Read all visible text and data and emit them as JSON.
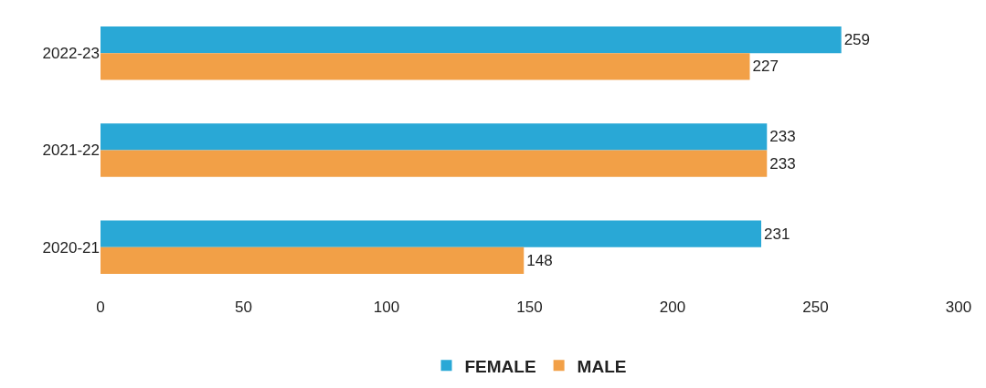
{
  "chart_data": {
    "type": "bar",
    "orientation": "horizontal",
    "categories": [
      "2022-23",
      "2021-22",
      "2020-21"
    ],
    "series": [
      {
        "name": "FEMALE",
        "color": "#29a8d6",
        "values": [
          259,
          233,
          231
        ]
      },
      {
        "name": "MALE",
        "color": "#f2a047",
        "values": [
          227,
          233,
          148
        ]
      }
    ],
    "xlim": [
      0,
      300
    ],
    "xticks": [
      0,
      50,
      100,
      150,
      200,
      250,
      300
    ],
    "data_labels": true,
    "grid": false,
    "legend": "bottom"
  }
}
